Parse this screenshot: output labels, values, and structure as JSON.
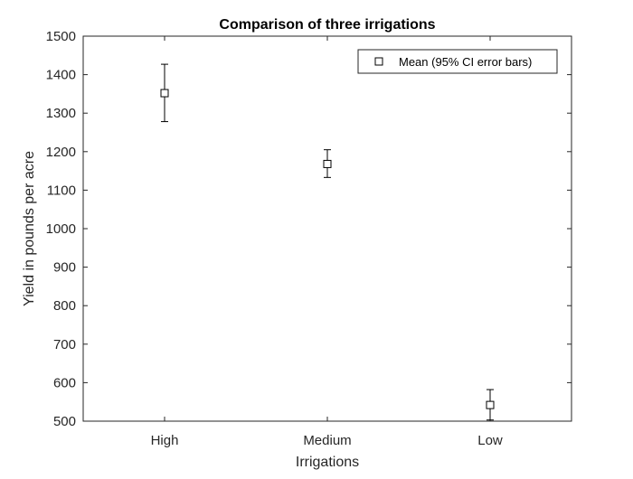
{
  "chart_data": {
    "type": "scatter",
    "title": "Comparison of three irrigations",
    "xlabel": "Irrigations",
    "ylabel": "Yield in pounds per acre",
    "categories": [
      "High",
      "Medium",
      "Low"
    ],
    "series": [
      {
        "name": "Mean (95% CI error bars)",
        "marker": "square",
        "values": [
          1352,
          1168,
          542
        ],
        "ci_lower": [
          1278,
          1133,
          503
        ],
        "ci_upper": [
          1427,
          1205,
          582
        ]
      }
    ],
    "ylim": [
      500,
      1500
    ],
    "yticks": [
      "500",
      "600",
      "700",
      "800",
      "900",
      "1000",
      "1100",
      "1200",
      "1300",
      "1400",
      "1500"
    ],
    "grid": false,
    "legend_location": "top-right"
  },
  "colors": {
    "axis": "#262626",
    "marker": "#000000",
    "background": "#ffffff"
  }
}
